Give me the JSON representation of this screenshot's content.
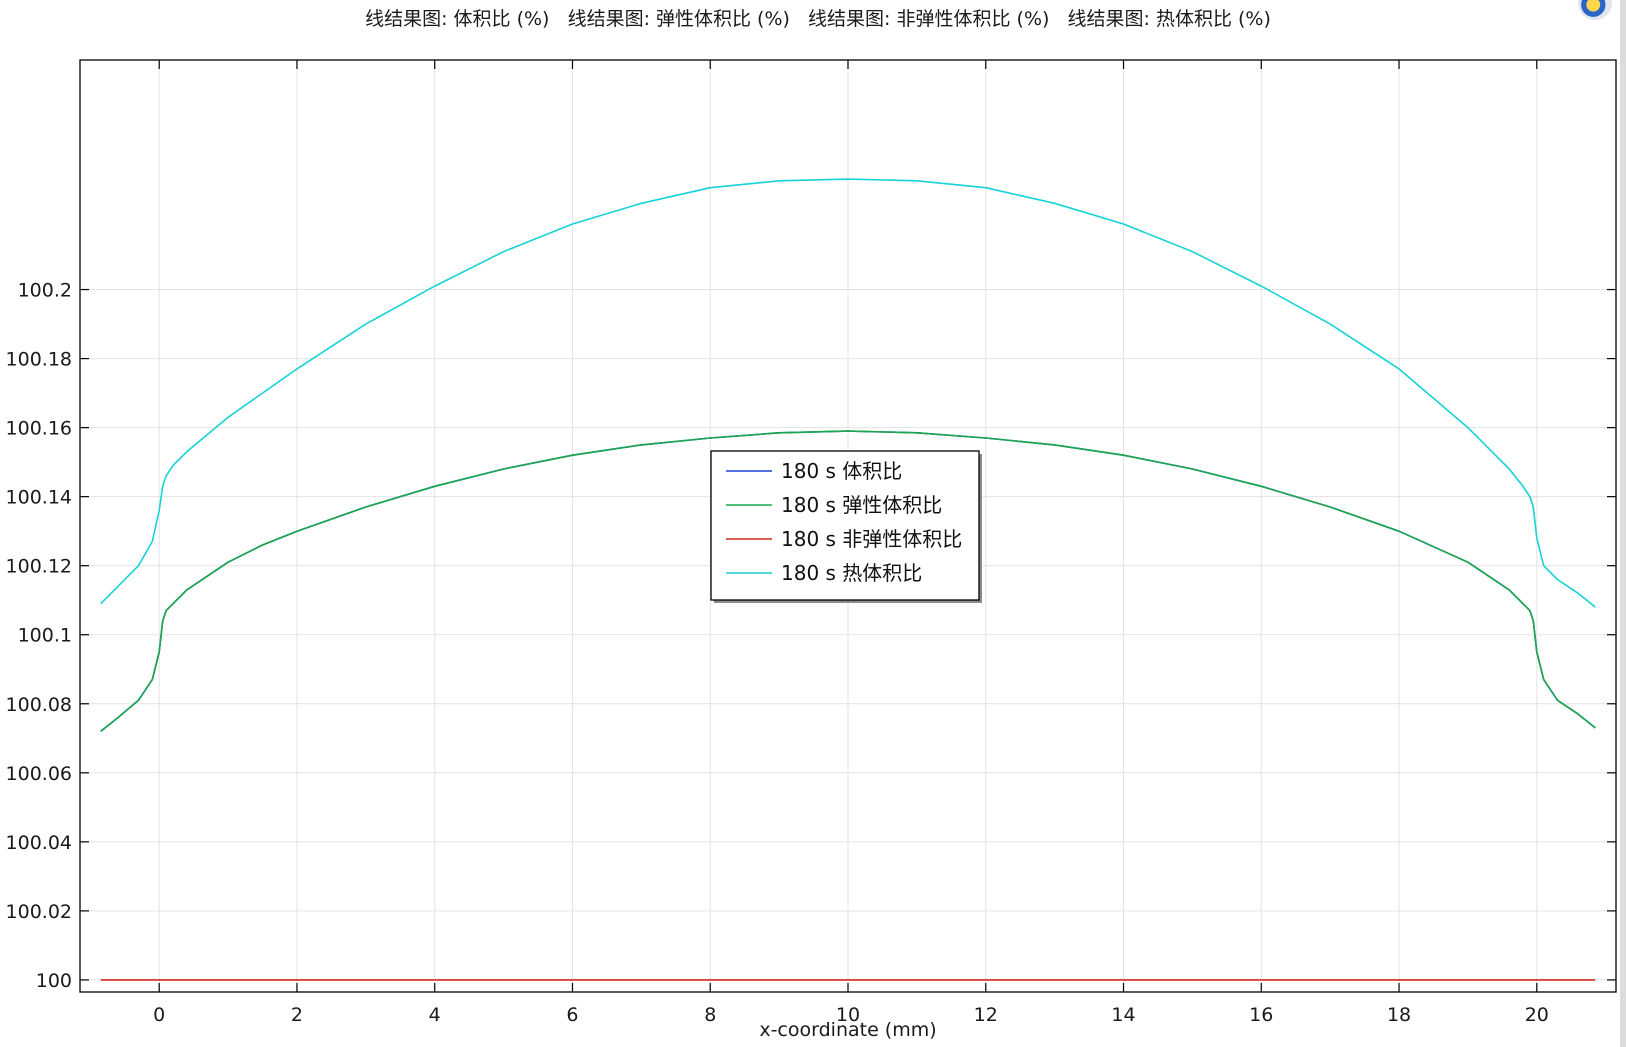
{
  "chart_data": {
    "type": "line",
    "title": "线结果图: 体积比 (%)   线结果图: 弹性体积比 (%)   线结果图: 非弹性体积比 (%)   线结果图: 热体积比 (%)",
    "xlabel": "x-coordinate (mm)",
    "ylabel": "",
    "xlim": [
      -1.15,
      21.15
    ],
    "ylim": [
      99.9965,
      100.2665
    ],
    "x_ticks": [
      0,
      2,
      4,
      6,
      8,
      10,
      12,
      14,
      16,
      18,
      20
    ],
    "y_ticks": [
      100,
      100.02,
      100.04,
      100.06,
      100.08,
      100.1,
      100.12,
      100.14,
      100.16,
      100.18,
      100.2
    ],
    "x_tick_labels": [
      "0",
      "2",
      "4",
      "6",
      "8",
      "10",
      "12",
      "14",
      "16",
      "18",
      "20"
    ],
    "y_tick_labels": [
      "100",
      "100.02",
      "100.04",
      "100.06",
      "100.08",
      "100.1",
      "100.12",
      "100.14",
      "100.16",
      "100.18",
      "100.2"
    ],
    "grid": true,
    "legend_position": "center",
    "series": [
      {
        "name": "180 s 体积比",
        "color": "#1f3fd9",
        "x": [
          -0.85,
          -0.6,
          -0.3,
          -0.1,
          0,
          0.05,
          0.1,
          0.2,
          0.4,
          0.7,
          1,
          1.5,
          2,
          3,
          4,
          5,
          6,
          7,
          8,
          9,
          10,
          11,
          12,
          13,
          14,
          15,
          16,
          17,
          18,
          19,
          19.3,
          19.6,
          19.8,
          19.9,
          19.95,
          20,
          20.1,
          20.3,
          20.6,
          20.85
        ],
        "y": [
          100.072,
          100.076,
          100.081,
          100.087,
          100.095,
          100.104,
          100.107,
          100.109,
          100.113,
          100.117,
          100.121,
          100.126,
          100.13,
          100.137,
          100.143,
          100.148,
          100.152,
          100.155,
          100.157,
          100.1585,
          100.159,
          100.1585,
          100.157,
          100.155,
          100.152,
          100.148,
          100.143,
          100.137,
          100.13,
          100.121,
          100.117,
          100.113,
          100.109,
          100.107,
          100.104,
          100.095,
          100.087,
          100.081,
          100.077,
          100.073
        ]
      },
      {
        "name": "180 s 弹性体积比",
        "color": "#1aa84a",
        "x": [
          -0.85,
          -0.6,
          -0.3,
          -0.1,
          0,
          0.05,
          0.1,
          0.2,
          0.4,
          0.7,
          1,
          1.5,
          2,
          3,
          4,
          5,
          6,
          7,
          8,
          9,
          10,
          11,
          12,
          13,
          14,
          15,
          16,
          17,
          18,
          19,
          19.3,
          19.6,
          19.8,
          19.9,
          19.95,
          20,
          20.1,
          20.3,
          20.6,
          20.85
        ],
        "y": [
          100.072,
          100.076,
          100.081,
          100.087,
          100.095,
          100.104,
          100.107,
          100.109,
          100.113,
          100.117,
          100.121,
          100.126,
          100.13,
          100.137,
          100.143,
          100.148,
          100.152,
          100.155,
          100.157,
          100.1585,
          100.159,
          100.1585,
          100.157,
          100.155,
          100.152,
          100.148,
          100.143,
          100.137,
          100.13,
          100.121,
          100.117,
          100.113,
          100.109,
          100.107,
          100.104,
          100.095,
          100.087,
          100.081,
          100.077,
          100.073
        ]
      },
      {
        "name": "180 s 非弹性体积比",
        "color": "#d42a1a",
        "x": [
          -0.85,
          20.85
        ],
        "y": [
          100,
          100
        ]
      },
      {
        "name": "180 s 热体积比",
        "color": "#17d2d6",
        "x": [
          -0.85,
          -0.6,
          -0.3,
          -0.1,
          0,
          0.05,
          0.1,
          0.2,
          0.4,
          0.7,
          1,
          1.5,
          2,
          3,
          4,
          5,
          6,
          7,
          8,
          9,
          10,
          11,
          12,
          13,
          14,
          15,
          16,
          17,
          18,
          19,
          19.3,
          19.6,
          19.8,
          19.9,
          19.95,
          20,
          20.1,
          20.3,
          20.6,
          20.85
        ],
        "y": [
          100.109,
          100.114,
          100.12,
          100.127,
          100.136,
          100.143,
          100.146,
          100.149,
          100.153,
          100.158,
          100.163,
          100.17,
          100.177,
          100.19,
          100.201,
          100.211,
          100.219,
          100.225,
          100.2295,
          100.2315,
          100.232,
          100.2315,
          100.2295,
          100.225,
          100.219,
          100.211,
          100.201,
          100.19,
          100.177,
          100.16,
          100.154,
          100.148,
          100.143,
          100.14,
          100.137,
          100.128,
          100.12,
          100.116,
          100.112,
          100.108
        ]
      }
    ]
  }
}
